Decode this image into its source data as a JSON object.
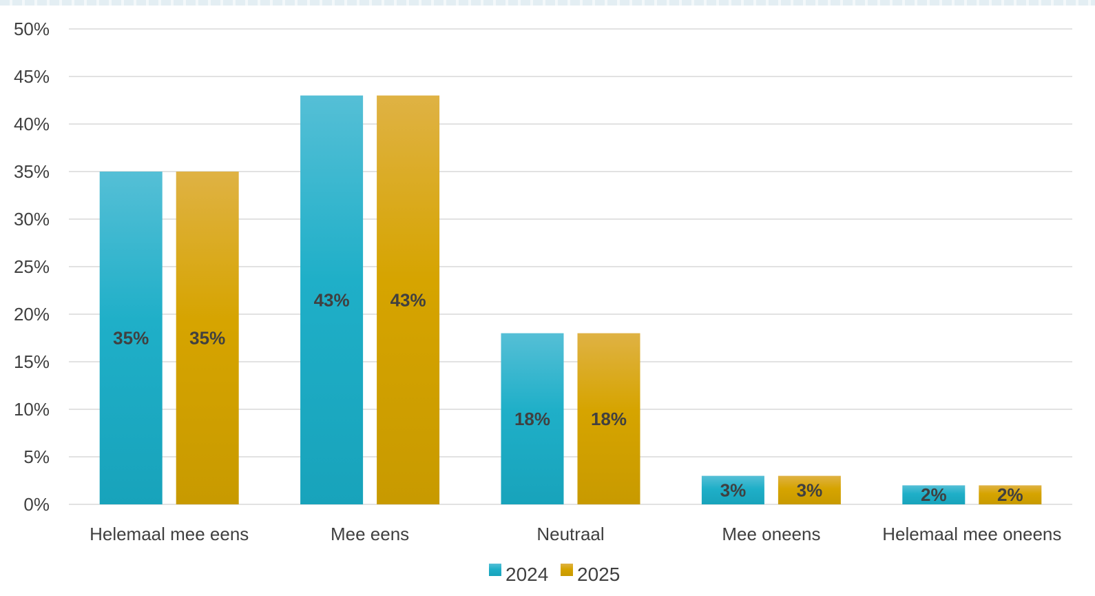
{
  "chart_data": {
    "type": "bar",
    "categories": [
      "Helemaal mee eens",
      "Mee eens",
      "Neutraal",
      "Mee oneens",
      "Helemaal mee oneens"
    ],
    "series": [
      {
        "name": "2024",
        "values": [
          35,
          43,
          18,
          3,
          2
        ],
        "labels": [
          "35%",
          "43%",
          "18%",
          "3%",
          "2%"
        ],
        "color": "#1fafc8",
        "color_light": "#55bfd6",
        "color_dark": "#18a3bb"
      },
      {
        "name": "2025",
        "values": [
          35,
          43,
          18,
          3,
          2
        ],
        "labels": [
          "35%",
          "43%",
          "18%",
          "3%",
          "2%"
        ],
        "color": "#d6a400",
        "color_light": "#dfb244",
        "color_dark": "#c89a00"
      }
    ],
    "y_ticks": [
      "0%",
      "5%",
      "10%",
      "15%",
      "20%",
      "25%",
      "30%",
      "35%",
      "40%",
      "45%",
      "50%"
    ],
    "ylim": [
      0,
      50
    ],
    "y_unit": "percent",
    "title": "",
    "xlabel": "",
    "ylabel": "",
    "grid": true,
    "legend": "bottom-center",
    "gridline_color": "#d9d9d9",
    "text_color": "#404040"
  }
}
